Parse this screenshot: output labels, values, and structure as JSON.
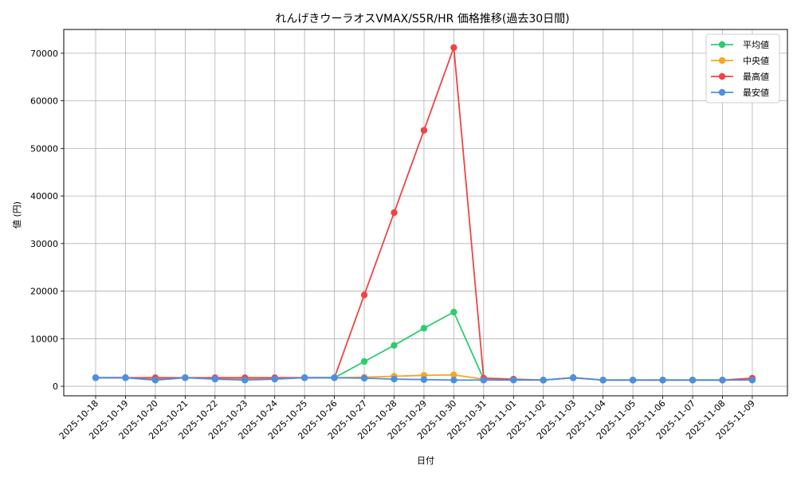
{
  "chart_data": {
    "type": "line",
    "title": "れんげきウーラオスVMAX/S5R/HR 価格推移(過去30日間)",
    "xlabel": "日付",
    "ylabel": "値 (円)",
    "ylim": [
      -2000,
      75000
    ],
    "yticks": [
      0,
      10000,
      20000,
      30000,
      40000,
      50000,
      60000,
      70000
    ],
    "grid": true,
    "legend_position": "top-right",
    "categories": [
      "2025-10-18",
      "2025-10-19",
      "2025-10-20",
      "2025-10-21",
      "2025-10-22",
      "2025-10-23",
      "2025-10-24",
      "2025-10-25",
      "2025-10-26",
      "2025-10-27",
      "2025-10-28",
      "2025-10-29",
      "2025-10-30",
      "2025-10-31",
      "2025-11-01",
      "2025-11-02",
      "2025-11-03",
      "2025-11-04",
      "2025-11-05",
      "2025-11-06",
      "2025-11-07",
      "2025-11-08",
      "2025-11-09"
    ],
    "series": [
      {
        "name": "平均値",
        "color": "#2ecc71",
        "values": [
          1800,
          1800,
          1600,
          1800,
          1700,
          1600,
          1700,
          1800,
          1800,
          5200,
          8600,
          12200,
          15600,
          1500,
          1400,
          1300,
          1800,
          1300,
          1300,
          1300,
          1300,
          1300,
          1400
        ]
      },
      {
        "name": "中央値",
        "color": "#f5a623",
        "values": [
          1800,
          1800,
          1600,
          1800,
          1700,
          1600,
          1700,
          1800,
          1800,
          1900,
          2100,
          2300,
          2400,
          1500,
          1400,
          1300,
          1800,
          1300,
          1300,
          1300,
          1300,
          1300,
          1400
        ]
      },
      {
        "name": "最高値",
        "color": "#ef4444",
        "values": [
          1800,
          1800,
          1800,
          1800,
          1800,
          1800,
          1800,
          1800,
          1800,
          19200,
          36500,
          53800,
          71200,
          1700,
          1500,
          1300,
          1800,
          1300,
          1300,
          1300,
          1300,
          1300,
          1700
        ]
      },
      {
        "name": "最安値",
        "color": "#4a90e2",
        "values": [
          1800,
          1800,
          1300,
          1800,
          1500,
          1300,
          1500,
          1800,
          1800,
          1700,
          1500,
          1400,
          1300,
          1300,
          1300,
          1300,
          1800,
          1300,
          1300,
          1300,
          1300,
          1300,
          1300
        ]
      }
    ]
  }
}
